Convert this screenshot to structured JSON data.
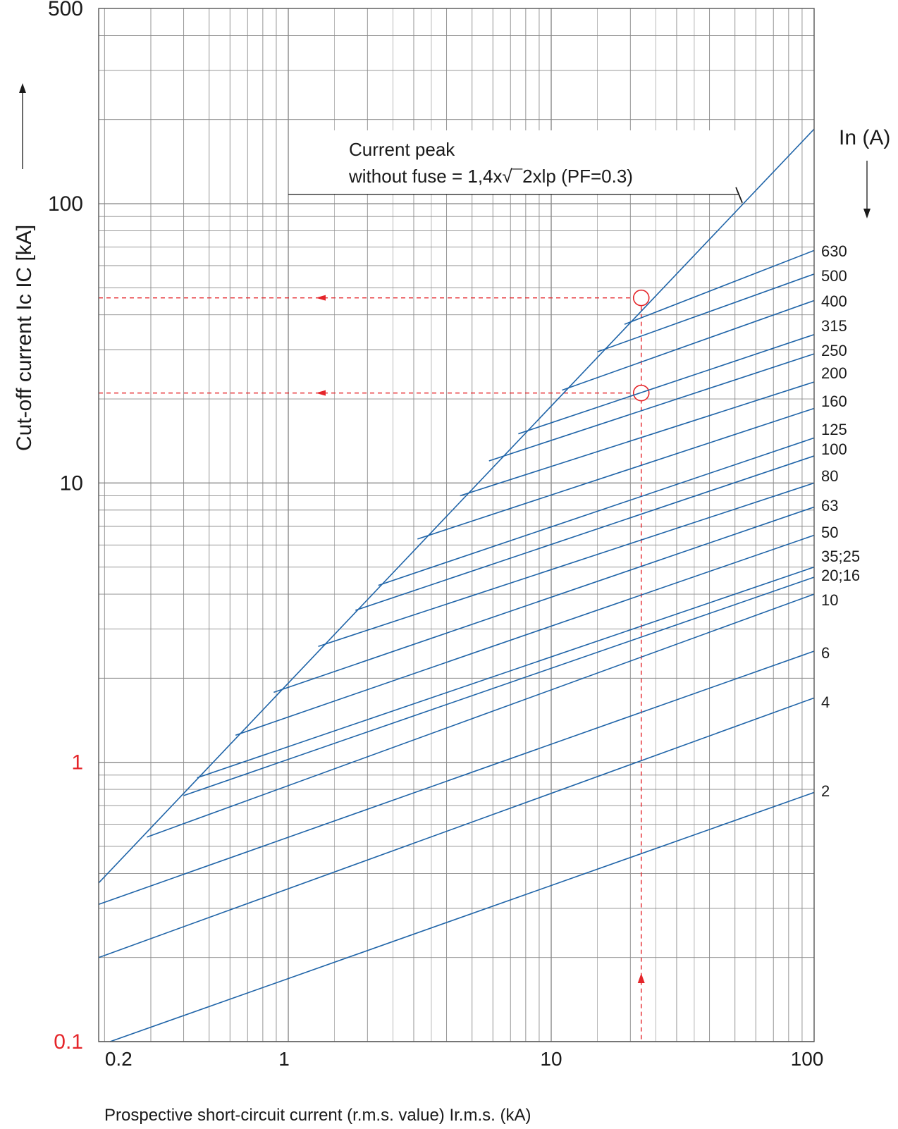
{
  "chart_data": {
    "type": "line",
    "log_x": true,
    "log_y": true,
    "xlim": [
      0.19,
      100
    ],
    "ylim": [
      0.1,
      500
    ],
    "grid": true,
    "xlabel": "Prospective short-circuit current (r.m.s. value) Ir.m.s. (kA)",
    "ylabel": "Cut-off current Ic  IC [kA]",
    "x_ticks": [
      "0.2",
      "1",
      "10",
      "100"
    ],
    "y_ticks": [
      {
        "label": "500",
        "value": 500,
        "highlight": false
      },
      {
        "label": "100",
        "value": 100,
        "highlight": false
      },
      {
        "label": "10",
        "value": 10,
        "highlight": false
      },
      {
        "label": "1",
        "value": 1,
        "highlight": true
      },
      {
        "label": "0.1",
        "value": 0.1,
        "highlight": true
      }
    ],
    "series_header": "In (A)",
    "annotation": {
      "line1": "Current peak",
      "line2": "without fuse = 1,4x√¯2xlp (PF=0.3)",
      "leader_y": 108
    },
    "peak_line": {
      "x": [
        0.19,
        100
      ],
      "y": [
        0.37,
        185
      ]
    },
    "series": [
      {
        "name": "630",
        "x": [
          19,
          100
        ],
        "y": [
          37,
          68
        ]
      },
      {
        "name": "500",
        "x": [
          15,
          100
        ],
        "y": [
          29.5,
          56
        ]
      },
      {
        "name": "400",
        "x": [
          11,
          100
        ],
        "y": [
          21.5,
          45
        ]
      },
      {
        "name": "315",
        "x": [
          7.5,
          100
        ],
        "y": [
          15,
          34
        ]
      },
      {
        "name": "250",
        "x": [
          5.8,
          100
        ],
        "y": [
          12,
          29
        ]
      },
      {
        "name": "200",
        "x": [
          4.5,
          100
        ],
        "y": [
          9,
          23
        ]
      },
      {
        "name": "160",
        "x": [
          3.1,
          100
        ],
        "y": [
          6.3,
          18.5
        ]
      },
      {
        "name": "125",
        "x": [
          2.2,
          100
        ],
        "y": [
          4.3,
          14.5
        ]
      },
      {
        "name": "100",
        "x": [
          1.8,
          100
        ],
        "y": [
          3.5,
          12.5
        ]
      },
      {
        "name": "80",
        "x": [
          1.3,
          100
        ],
        "y": [
          2.6,
          10
        ]
      },
      {
        "name": "63",
        "x": [
          0.88,
          100
        ],
        "y": [
          1.78,
          8.2
        ]
      },
      {
        "name": "50",
        "x": [
          0.63,
          100
        ],
        "y": [
          1.25,
          6.5
        ]
      },
      {
        "name": "35;25",
        "x": [
          0.45,
          100
        ],
        "y": [
          0.88,
          5
        ]
      },
      {
        "name": "20;16",
        "x": [
          0.4,
          100
        ],
        "y": [
          0.76,
          4.6
        ]
      },
      {
        "name": "10",
        "x": [
          0.29,
          100
        ],
        "y": [
          0.54,
          4
        ]
      },
      {
        "name": "6",
        "x": [
          0.19,
          100
        ],
        "y": [
          0.31,
          2.5
        ]
      },
      {
        "name": "4",
        "x": [
          0.19,
          100
        ],
        "y": [
          0.2,
          1.7
        ]
      },
      {
        "name": "2",
        "x": [
          0.21,
          100
        ],
        "y": [
          0.1,
          0.78
        ]
      }
    ],
    "reference": {
      "x": 22,
      "circles": [
        {
          "x": 22,
          "y": 46
        },
        {
          "x": 22,
          "y": 21
        }
      ]
    },
    "colors": {
      "series": "#1f64a8",
      "grid": "#8a8a8a",
      "reference": "#e5252a",
      "axis_text": "#1a1a1a"
    }
  }
}
